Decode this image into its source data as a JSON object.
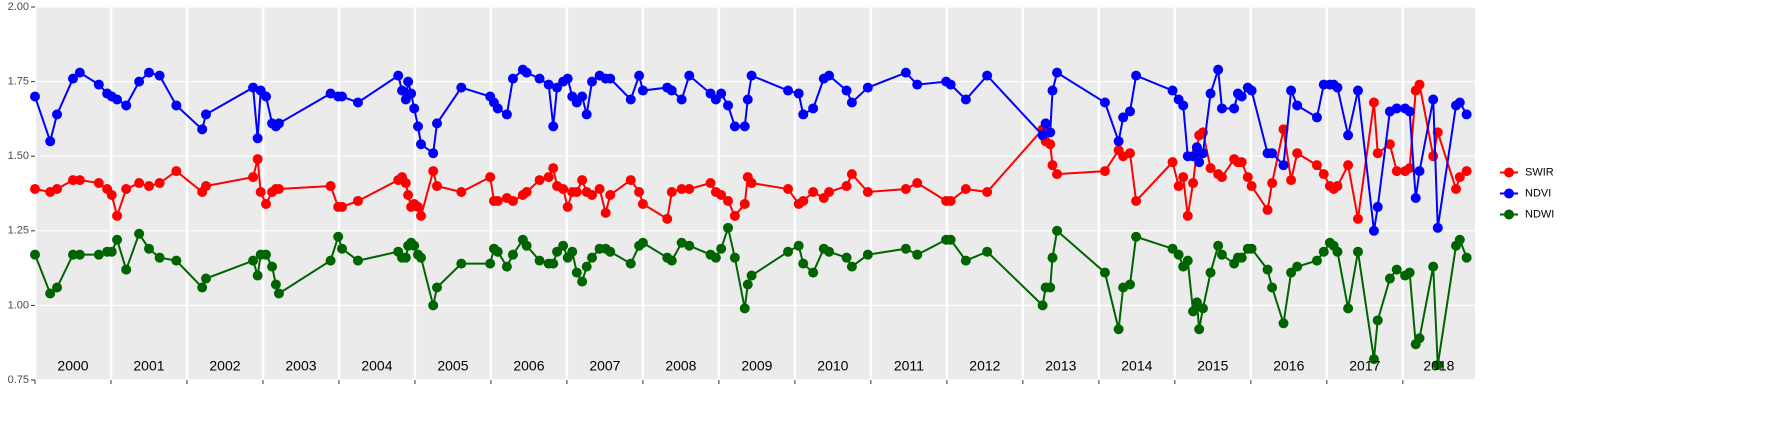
{
  "chart_data": {
    "type": "line",
    "x": [
      2000.0,
      2000.2,
      2000.29,
      2000.5,
      2000.59,
      2000.84,
      2000.95,
      2001.01,
      2001.08,
      2001.2,
      2001.37,
      2001.5,
      2001.64,
      2001.86,
      2002.2,
      2002.25,
      2002.87,
      2002.93,
      2002.97,
      2003.04,
      2003.12,
      2003.17,
      2003.21,
      2003.89,
      2003.99,
      2004.04,
      2004.25,
      2004.78,
      2004.83,
      2004.88,
      2004.91,
      2004.95,
      2004.99,
      2005.04,
      2005.08,
      2005.24,
      2005.29,
      2005.61,
      2005.99,
      2006.04,
      2006.09,
      2006.21,
      2006.29,
      2006.42,
      2006.47,
      2006.64,
      2006.76,
      2006.82,
      2006.87,
      2006.95,
      2007.01,
      2007.07,
      2007.13,
      2007.2,
      2007.26,
      2007.33,
      2007.43,
      2007.51,
      2007.57,
      2007.84,
      2007.95,
      2008.0,
      2008.32,
      2008.38,
      2008.51,
      2008.61,
      2008.89,
      2008.96,
      2009.03,
      2009.12,
      2009.21,
      2009.34,
      2009.38,
      2009.43,
      2009.91,
      2010.05,
      2010.11,
      2010.24,
      2010.38,
      2010.45,
      2010.68,
      2010.75,
      2010.96,
      2011.46,
      2011.61,
      2011.99,
      2012.05,
      2012.25,
      2012.53,
      2013.26,
      2013.3,
      2013.36,
      2013.39,
      2013.45,
      2014.08,
      2014.26,
      2014.32,
      2014.41,
      2014.49,
      2014.97,
      2015.05,
      2015.11,
      2015.17,
      2015.24,
      2015.29,
      2015.32,
      2015.37,
      2015.47,
      2015.57,
      2015.62,
      2015.78,
      2015.83,
      2015.88,
      2015.96,
      2016.01,
      2016.22,
      2016.28,
      2016.43,
      2016.53,
      2016.61,
      2016.87,
      2016.96,
      2017.04,
      2017.09,
      2017.14,
      2017.28,
      2017.41,
      2017.62,
      2017.67,
      2017.83,
      2017.92,
      2018.03,
      2018.09,
      2018.17,
      2018.22,
      2018.4,
      2018.46,
      2018.7,
      2018.75,
      2018.84
    ],
    "series": [
      {
        "name": "SWIR",
        "color": "#ff0000",
        "values": [
          1.39,
          1.38,
          1.39,
          1.42,
          1.42,
          1.41,
          1.39,
          1.37,
          1.3,
          1.39,
          1.41,
          1.4,
          1.41,
          1.45,
          1.38,
          1.4,
          1.43,
          1.49,
          1.38,
          1.34,
          1.38,
          1.39,
          1.39,
          1.4,
          1.33,
          1.33,
          1.35,
          1.42,
          1.43,
          1.41,
          1.37,
          1.33,
          1.34,
          1.33,
          1.3,
          1.45,
          1.4,
          1.38,
          1.43,
          1.35,
          1.35,
          1.36,
          1.35,
          1.37,
          1.38,
          1.42,
          1.43,
          1.46,
          1.4,
          1.39,
          1.33,
          1.38,
          1.38,
          1.42,
          1.38,
          1.37,
          1.39,
          1.31,
          1.37,
          1.42,
          1.38,
          1.34,
          1.29,
          1.38,
          1.39,
          1.39,
          1.41,
          1.38,
          1.37,
          1.35,
          1.3,
          1.34,
          1.43,
          1.41,
          1.39,
          1.34,
          1.35,
          1.38,
          1.36,
          1.38,
          1.4,
          1.44,
          1.38,
          1.39,
          1.41,
          1.35,
          1.35,
          1.39,
          1.38,
          1.59,
          1.55,
          1.54,
          1.47,
          1.44,
          1.45,
          1.52,
          1.5,
          1.51,
          1.35,
          1.48,
          1.4,
          1.43,
          1.3,
          1.41,
          1.52,
          1.57,
          1.58,
          1.46,
          1.44,
          1.43,
          1.49,
          1.48,
          1.48,
          1.43,
          1.4,
          1.32,
          1.41,
          1.59,
          1.42,
          1.51,
          1.47,
          1.44,
          1.4,
          1.39,
          1.4,
          1.47,
          1.29,
          1.68,
          1.51,
          1.54,
          1.45,
          1.45,
          1.46,
          1.72,
          1.74,
          1.5,
          1.58,
          1.39,
          1.43,
          1.45
        ]
      },
      {
        "name": "NDVI",
        "color": "#0000ff",
        "values": [
          1.7,
          1.55,
          1.64,
          1.76,
          1.78,
          1.74,
          1.71,
          1.7,
          1.69,
          1.67,
          1.75,
          1.78,
          1.77,
          1.67,
          1.59,
          1.64,
          1.73,
          1.56,
          1.72,
          1.7,
          1.61,
          1.6,
          1.61,
          1.71,
          1.7,
          1.7,
          1.68,
          1.77,
          1.72,
          1.69,
          1.75,
          1.71,
          1.66,
          1.6,
          1.54,
          1.51,
          1.61,
          1.73,
          1.7,
          1.68,
          1.66,
          1.64,
          1.76,
          1.79,
          1.78,
          1.76,
          1.74,
          1.6,
          1.73,
          1.75,
          1.76,
          1.7,
          1.68,
          1.7,
          1.64,
          1.75,
          1.77,
          1.76,
          1.76,
          1.69,
          1.77,
          1.72,
          1.73,
          1.72,
          1.69,
          1.77,
          1.71,
          1.69,
          1.71,
          1.67,
          1.6,
          1.6,
          1.69,
          1.77,
          1.72,
          1.71,
          1.64,
          1.66,
          1.76,
          1.77,
          1.72,
          1.68,
          1.73,
          1.78,
          1.74,
          1.75,
          1.74,
          1.69,
          1.77,
          1.57,
          1.61,
          1.58,
          1.72,
          1.78,
          1.68,
          1.55,
          1.63,
          1.65,
          1.77,
          1.72,
          1.69,
          1.67,
          1.5,
          1.5,
          1.53,
          1.48,
          1.51,
          1.71,
          1.79,
          1.66,
          1.66,
          1.71,
          1.7,
          1.73,
          1.72,
          1.51,
          1.51,
          1.47,
          1.72,
          1.67,
          1.63,
          1.74,
          1.74,
          1.74,
          1.73,
          1.57,
          1.72,
          1.25,
          1.33,
          1.65,
          1.66,
          1.66,
          1.65,
          1.36,
          1.45,
          1.69,
          1.26,
          1.67,
          1.68,
          1.64
        ]
      },
      {
        "name": "NDWI",
        "color": "#006400",
        "values": [
          1.17,
          1.04,
          1.06,
          1.17,
          1.17,
          1.17,
          1.18,
          1.18,
          1.22,
          1.12,
          1.24,
          1.19,
          1.16,
          1.15,
          1.06,
          1.09,
          1.15,
          1.1,
          1.17,
          1.17,
          1.13,
          1.07,
          1.04,
          1.15,
          1.23,
          1.19,
          1.15,
          1.18,
          1.16,
          1.16,
          1.2,
          1.21,
          1.2,
          1.17,
          1.16,
          1.0,
          1.06,
          1.14,
          1.14,
          1.19,
          1.18,
          1.13,
          1.17,
          1.22,
          1.2,
          1.15,
          1.14,
          1.14,
          1.18,
          1.2,
          1.16,
          1.18,
          1.11,
          1.08,
          1.13,
          1.16,
          1.19,
          1.19,
          1.18,
          1.14,
          1.2,
          1.21,
          1.16,
          1.15,
          1.21,
          1.2,
          1.17,
          1.16,
          1.19,
          1.26,
          1.16,
          0.99,
          1.07,
          1.1,
          1.18,
          1.2,
          1.14,
          1.11,
          1.19,
          1.18,
          1.16,
          1.13,
          1.17,
          1.19,
          1.17,
          1.22,
          1.22,
          1.15,
          1.18,
          1.0,
          1.06,
          1.06,
          1.16,
          1.25,
          1.11,
          0.92,
          1.06,
          1.07,
          1.23,
          1.19,
          1.17,
          1.13,
          1.15,
          0.98,
          1.01,
          0.92,
          0.99,
          1.11,
          1.2,
          1.17,
          1.14,
          1.16,
          1.16,
          1.19,
          1.19,
          1.12,
          1.06,
          0.94,
          1.11,
          1.13,
          1.15,
          1.18,
          1.21,
          1.2,
          1.18,
          0.99,
          1.18,
          0.82,
          0.95,
          1.09,
          1.12,
          1.1,
          1.11,
          0.87,
          0.89,
          1.13,
          0.8,
          1.2,
          1.22,
          1.16
        ]
      }
    ],
    "xlim": [
      2000,
      2018.95
    ],
    "xticks": [
      {
        "value": 2000,
        "label": "2000"
      },
      {
        "value": 2001,
        "label": "2001"
      },
      {
        "value": 2002,
        "label": "2002"
      },
      {
        "value": 2003,
        "label": "2003"
      },
      {
        "value": 2004,
        "label": "2004"
      },
      {
        "value": 2005,
        "label": "2005"
      },
      {
        "value": 2006,
        "label": "2006"
      },
      {
        "value": 2007,
        "label": "2007"
      },
      {
        "value": 2008,
        "label": "2008"
      },
      {
        "value": 2009,
        "label": "2009"
      },
      {
        "value": 2010,
        "label": "2010"
      },
      {
        "value": 2011,
        "label": "2011"
      },
      {
        "value": 2012,
        "label": "2012"
      },
      {
        "value": 2013,
        "label": "2013"
      },
      {
        "value": 2014,
        "label": "2014"
      },
      {
        "value": 2015,
        "label": "2015"
      },
      {
        "value": 2016,
        "label": "2016"
      },
      {
        "value": 2017,
        "label": "2017"
      },
      {
        "value": 2018,
        "label": "2018"
      }
    ],
    "ylim": [
      0.75,
      2.0
    ],
    "yticks": [
      0.75,
      {
        "value": 1,
        "label": "1.00"
      },
      1.25,
      {
        "value": 1.5,
        "label": "1.50"
      },
      1.75,
      {
        "value": 2,
        "label": "2.00"
      }
    ],
    "grid": true,
    "legend": "right"
  }
}
